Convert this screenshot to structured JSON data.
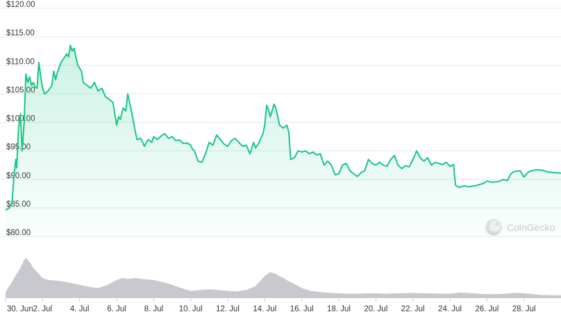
{
  "chart_data": {
    "type": "area",
    "title": "",
    "xlabel": "",
    "ylabel": "",
    "ylim": [
      80,
      120
    ],
    "y_ticks": [
      "$120.00",
      "$115.00",
      "$110.00",
      "$105.00",
      "$100.00",
      "$95.00",
      "$90.00",
      "$85.00",
      "$80.00"
    ],
    "y_tick_values": [
      120,
      115,
      110,
      105,
      100,
      95,
      90,
      85,
      80
    ],
    "x_range_days": [
      "30 Jun",
      "30 Jul"
    ],
    "x_ticks": [
      {
        "label": "30. Jun",
        "day": 0
      },
      {
        "label": "2. Jul",
        "day": 2
      },
      {
        "label": "4. Jul",
        "day": 4
      },
      {
        "label": "6. Jul",
        "day": 6
      },
      {
        "label": "8. Jul",
        "day": 8
      },
      {
        "label": "10. Jul",
        "day": 10
      },
      {
        "label": "12. Jul",
        "day": 12
      },
      {
        "label": "14. Jul",
        "day": 14
      },
      {
        "label": "16. Jul",
        "day": 16
      },
      {
        "label": "18. Jul",
        "day": 18
      },
      {
        "label": "20. Jul",
        "day": 20
      },
      {
        "label": "22. Jul",
        "day": 22
      },
      {
        "label": "24. Jul",
        "day": 24
      },
      {
        "label": "26. Jul",
        "day": 26
      },
      {
        "label": "28. Jul",
        "day": 28
      }
    ],
    "series": [
      {
        "values": [
          [
            0.0,
            84.6
          ],
          [
            0.2,
            85.0
          ],
          [
            0.35,
            85.8
          ],
          [
            0.45,
            90.5
          ],
          [
            0.55,
            93.5
          ],
          [
            0.6,
            92.0
          ],
          [
            0.7,
            99.0
          ],
          [
            0.8,
            101.5
          ],
          [
            0.9,
            95.0
          ],
          [
            1.0,
            100.0
          ],
          [
            1.05,
            104.0
          ],
          [
            1.1,
            108.5
          ],
          [
            1.2,
            107.0
          ],
          [
            1.3,
            108.0
          ],
          [
            1.4,
            106.5
          ],
          [
            1.5,
            107.0
          ],
          [
            1.6,
            106.2
          ],
          [
            1.7,
            106.0
          ],
          [
            1.8,
            110.5
          ],
          [
            1.9,
            108.0
          ],
          [
            2.0,
            106.0
          ],
          [
            2.1,
            105.0
          ],
          [
            2.3,
            105.5
          ],
          [
            2.5,
            106.5
          ],
          [
            2.6,
            109.0
          ],
          [
            2.7,
            107.5
          ],
          [
            2.8,
            108.8
          ],
          [
            3.0,
            110.5
          ],
          [
            3.1,
            111.0
          ],
          [
            3.3,
            112.0
          ],
          [
            3.4,
            111.5
          ],
          [
            3.5,
            113.5
          ],
          [
            3.6,
            112.5
          ],
          [
            3.7,
            113.0
          ],
          [
            3.8,
            111.5
          ],
          [
            3.9,
            110.0
          ],
          [
            4.0,
            109.5
          ],
          [
            4.1,
            109.0
          ],
          [
            4.2,
            107.0
          ],
          [
            4.4,
            106.5
          ],
          [
            4.6,
            106.0
          ],
          [
            4.8,
            107.0
          ],
          [
            5.0,
            105.5
          ],
          [
            5.2,
            106.0
          ],
          [
            5.4,
            104.5
          ],
          [
            5.6,
            104.0
          ],
          [
            5.8,
            103.5
          ],
          [
            6.0,
            99.5
          ],
          [
            6.1,
            101.0
          ],
          [
            6.2,
            100.5
          ],
          [
            6.35,
            102.5
          ],
          [
            6.5,
            102.0
          ],
          [
            6.6,
            105.0
          ],
          [
            6.8,
            102.0
          ],
          [
            7.0,
            98.5
          ],
          [
            7.1,
            97.0
          ],
          [
            7.3,
            97.2
          ],
          [
            7.5,
            95.8
          ],
          [
            7.7,
            97.0
          ],
          [
            7.9,
            96.5
          ],
          [
            8.0,
            97.5
          ],
          [
            8.2,
            97.0
          ],
          [
            8.4,
            97.6
          ],
          [
            8.6,
            98.0
          ],
          [
            8.8,
            97.2
          ],
          [
            9.0,
            97.5
          ],
          [
            9.2,
            96.8
          ],
          [
            9.4,
            96.9
          ],
          [
            9.6,
            96.3
          ],
          [
            9.8,
            96.4
          ],
          [
            10.0,
            96.0
          ],
          [
            10.1,
            95.3
          ],
          [
            10.2,
            95.0
          ],
          [
            10.4,
            93.2
          ],
          [
            10.6,
            93.0
          ],
          [
            10.8,
            94.5
          ],
          [
            11.0,
            96.5
          ],
          [
            11.2,
            96.0
          ],
          [
            11.4,
            97.8
          ],
          [
            11.6,
            97.0
          ],
          [
            11.8,
            96.2
          ],
          [
            12.0,
            95.8
          ],
          [
            12.2,
            96.8
          ],
          [
            12.4,
            97.2
          ],
          [
            12.6,
            96.5
          ],
          [
            12.8,
            95.8
          ],
          [
            13.0,
            96.0
          ],
          [
            13.2,
            94.5
          ],
          [
            13.4,
            96.5
          ],
          [
            13.5,
            95.5
          ],
          [
            13.7,
            96.5
          ],
          [
            13.9,
            98.0
          ],
          [
            14.0,
            99.5
          ],
          [
            14.1,
            103.0
          ],
          [
            14.2,
            102.2
          ],
          [
            14.3,
            101.0
          ],
          [
            14.5,
            103.2
          ],
          [
            14.6,
            102.5
          ],
          [
            14.8,
            99.5
          ],
          [
            15.0,
            99.0
          ],
          [
            15.2,
            99.5
          ],
          [
            15.3,
            98.2
          ],
          [
            15.4,
            93.5
          ],
          [
            15.6,
            93.8
          ],
          [
            15.8,
            95.0
          ],
          [
            16.0,
            94.8
          ],
          [
            16.2,
            95.0
          ],
          [
            16.4,
            94.5
          ],
          [
            16.6,
            94.8
          ],
          [
            16.8,
            94.3
          ],
          [
            17.0,
            94.5
          ],
          [
            17.2,
            92.5
          ],
          [
            17.4,
            93.2
          ],
          [
            17.6,
            92.5
          ],
          [
            17.8,
            90.8
          ],
          [
            18.0,
            91.0
          ],
          [
            18.2,
            92.5
          ],
          [
            18.4,
            92.8
          ],
          [
            18.6,
            91.5
          ],
          [
            18.8,
            91.0
          ],
          [
            19.0,
            90.5
          ],
          [
            19.2,
            91.2
          ],
          [
            19.4,
            91.5
          ],
          [
            19.6,
            93.5
          ],
          [
            19.8,
            92.8
          ],
          [
            20.0,
            92.5
          ],
          [
            20.2,
            93.0
          ],
          [
            20.4,
            92.5
          ],
          [
            20.6,
            92.3
          ],
          [
            20.8,
            93.5
          ],
          [
            21.0,
            94.2
          ],
          [
            21.2,
            92.5
          ],
          [
            21.4,
            91.9
          ],
          [
            21.6,
            92.4
          ],
          [
            21.8,
            92.2
          ],
          [
            22.0,
            93.5
          ],
          [
            22.2,
            95.0
          ],
          [
            22.4,
            93.8
          ],
          [
            22.6,
            93.2
          ],
          [
            22.8,
            93.8
          ],
          [
            23.0,
            92.5
          ],
          [
            23.2,
            93.0
          ],
          [
            23.4,
            92.8
          ],
          [
            23.6,
            92.6
          ],
          [
            23.8,
            93.0
          ],
          [
            24.0,
            92.3
          ],
          [
            24.2,
            92.6
          ],
          [
            24.3,
            89.0
          ],
          [
            24.5,
            88.6
          ],
          [
            24.8,
            88.9
          ],
          [
            25.0,
            88.7
          ],
          [
            25.2,
            88.8
          ],
          [
            25.5,
            89.0
          ],
          [
            25.8,
            89.3
          ],
          [
            26.0,
            89.7
          ],
          [
            26.3,
            89.5
          ],
          [
            26.6,
            89.6
          ],
          [
            26.9,
            90.0
          ],
          [
            27.1,
            89.8
          ],
          [
            27.3,
            91.0
          ],
          [
            27.5,
            91.4
          ],
          [
            27.8,
            91.5
          ],
          [
            28.0,
            90.4
          ],
          [
            28.2,
            91.2
          ],
          [
            28.4,
            91.5
          ],
          [
            28.7,
            91.7
          ],
          [
            29.0,
            91.6
          ],
          [
            29.3,
            91.3
          ],
          [
            29.6,
            91.2
          ],
          [
            30.0,
            91.1
          ]
        ]
      }
    ],
    "volume_series": {
      "values": [
        [
          0.0,
          0.15
        ],
        [
          0.4,
          0.45
        ],
        [
          0.8,
          0.75
        ],
        [
          1.0,
          0.95
        ],
        [
          1.1,
          1.0
        ],
        [
          1.3,
          0.9
        ],
        [
          1.5,
          0.75
        ],
        [
          1.8,
          0.6
        ],
        [
          2.0,
          0.5
        ],
        [
          2.3,
          0.45
        ],
        [
          2.6,
          0.44
        ],
        [
          3.0,
          0.42
        ],
        [
          3.5,
          0.38
        ],
        [
          4.0,
          0.33
        ],
        [
          4.5,
          0.28
        ],
        [
          5.0,
          0.25
        ],
        [
          5.5,
          0.33
        ],
        [
          6.0,
          0.45
        ],
        [
          6.3,
          0.5
        ],
        [
          6.6,
          0.48
        ],
        [
          7.0,
          0.5
        ],
        [
          7.5,
          0.47
        ],
        [
          8.0,
          0.45
        ],
        [
          8.5,
          0.4
        ],
        [
          9.0,
          0.33
        ],
        [
          9.5,
          0.25
        ],
        [
          10.0,
          0.18
        ],
        [
          10.5,
          0.2
        ],
        [
          11.0,
          0.22
        ],
        [
          11.5,
          0.2
        ],
        [
          12.0,
          0.18
        ],
        [
          12.5,
          0.17
        ],
        [
          13.0,
          0.2
        ],
        [
          13.5,
          0.3
        ],
        [
          14.0,
          0.55
        ],
        [
          14.3,
          0.65
        ],
        [
          14.6,
          0.6
        ],
        [
          15.0,
          0.5
        ],
        [
          15.3,
          0.42
        ],
        [
          15.6,
          0.35
        ],
        [
          16.0,
          0.25
        ],
        [
          16.5,
          0.18
        ],
        [
          17.0,
          0.15
        ],
        [
          17.5,
          0.13
        ],
        [
          18.0,
          0.12
        ],
        [
          18.5,
          0.11
        ],
        [
          19.0,
          0.11
        ],
        [
          19.5,
          0.12
        ],
        [
          20.0,
          0.12
        ],
        [
          20.5,
          0.11
        ],
        [
          21.0,
          0.12
        ],
        [
          21.5,
          0.12
        ],
        [
          22.0,
          0.13
        ],
        [
          22.5,
          0.12
        ],
        [
          23.0,
          0.12
        ],
        [
          23.5,
          0.11
        ],
        [
          24.0,
          0.11
        ],
        [
          24.5,
          0.14
        ],
        [
          25.0,
          0.13
        ],
        [
          25.5,
          0.11
        ],
        [
          26.0,
          0.1
        ],
        [
          26.5,
          0.1
        ],
        [
          27.0,
          0.11
        ],
        [
          27.5,
          0.13
        ],
        [
          28.0,
          0.12
        ],
        [
          28.5,
          0.1
        ],
        [
          29.0,
          0.08
        ],
        [
          29.5,
          0.07
        ],
        [
          30.0,
          0.07
        ]
      ]
    },
    "grid": true,
    "colors": {
      "line": "#16c784",
      "area_top": "#16c784",
      "volume": "#c8c9ce",
      "grid": "#e8e8e8",
      "tick_text": "#333333"
    }
  },
  "watermark": {
    "text": "CoinGecko",
    "icon": "coingecko-gecko-icon"
  }
}
